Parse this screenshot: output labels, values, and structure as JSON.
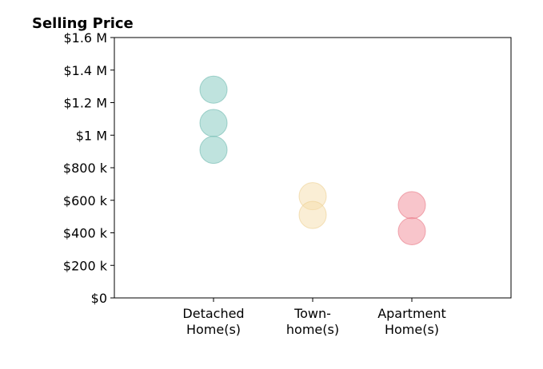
{
  "chart_data": {
    "type": "scatter",
    "title": "Selling Price",
    "xlabel": "",
    "ylabel": "",
    "categories": [
      {
        "line1": "Detached",
        "line2": "Home(s)"
      },
      {
        "line1": "Town-",
        "line2": "home(s)"
      },
      {
        "line1": "Apartment",
        "line2": "Home(s)"
      }
    ],
    "ylim": [
      0,
      1600000
    ],
    "y_ticks": [
      {
        "value": 0,
        "label": "$0"
      },
      {
        "value": 200000,
        "label": "$200 k"
      },
      {
        "value": 400000,
        "label": "$400 k"
      },
      {
        "value": 600000,
        "label": "$600 k"
      },
      {
        "value": 800000,
        "label": "$800 k"
      },
      {
        "value": 1000000,
        "label": "$1 M"
      },
      {
        "value": 1200000,
        "label": "$1.2 M"
      },
      {
        "value": 1400000,
        "label": "$1.4 M"
      },
      {
        "value": 1600000,
        "label": "$1.6 M"
      }
    ],
    "series": [
      {
        "category_index": 0,
        "color": "#7fc8bd",
        "stroke": "#6bb8ad",
        "values": [
          1280000,
          1075000,
          910000
        ]
      },
      {
        "category_index": 1,
        "color": "#f5deab",
        "stroke": "#eccf90",
        "values": [
          625000,
          510000
        ]
      },
      {
        "category_index": 2,
        "color": "#f28b97",
        "stroke": "#e87684",
        "values": [
          570000,
          410000
        ]
      }
    ],
    "grid": false,
    "legend": "none"
  }
}
